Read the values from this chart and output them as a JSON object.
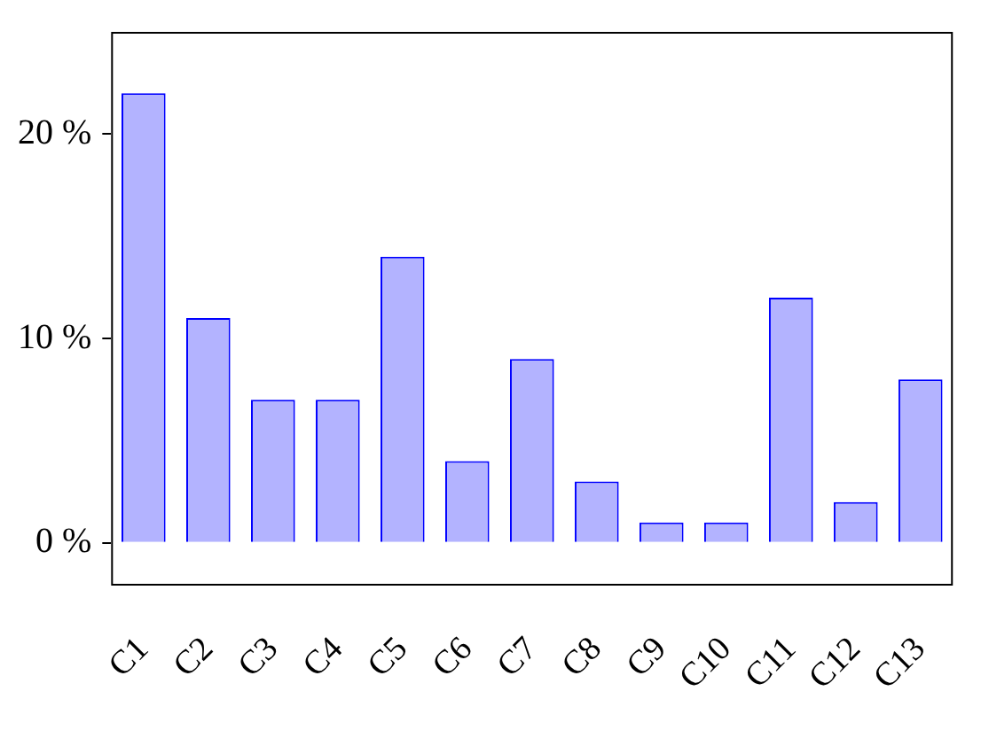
{
  "chart_data": {
    "type": "bar",
    "categories": [
      "C1",
      "C2",
      "C3",
      "C4",
      "C5",
      "C6",
      "C7",
      "C8",
      "C9",
      "C10",
      "C11",
      "C12",
      "C13"
    ],
    "values": [
      22,
      11,
      7,
      7,
      14,
      4,
      9,
      3,
      1,
      1,
      12,
      2,
      8
    ],
    "color": "#b3b3ff",
    "ylim": [
      -2,
      25
    ],
    "yticks": [
      {
        "value": 0,
        "label": "0 %"
      },
      {
        "value": 10,
        "label": "10 %"
      },
      {
        "value": 20,
        "label": "20 %"
      }
    ],
    "grid": false
  }
}
